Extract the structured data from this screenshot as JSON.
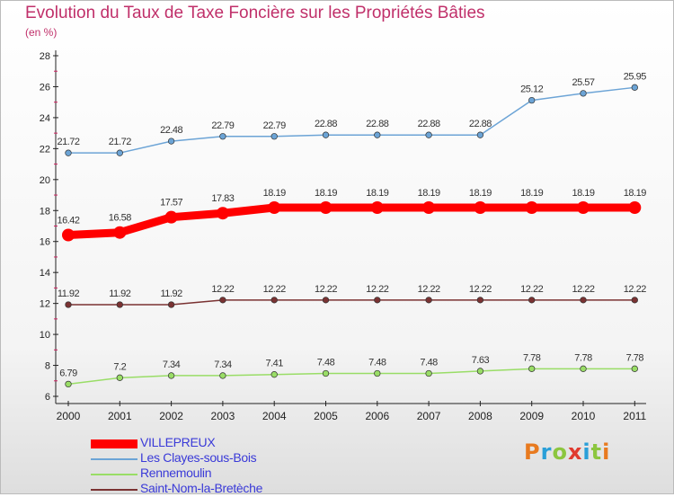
{
  "title": "Evolution du Taux de Taxe Foncière sur les Propriétés Bâties",
  "subtitle": "(en %)",
  "logo": {
    "text": "Proxiti",
    "colors": [
      "#e87a1f",
      "#2a9fd8",
      "#8cc63f",
      "#e03a2f",
      "#2a9fd8",
      "#8cc63f",
      "#e87a1f"
    ]
  },
  "chart_data": {
    "type": "line",
    "categories": [
      "2000",
      "2001",
      "2002",
      "2003",
      "2004",
      "2005",
      "2006",
      "2007",
      "2008",
      "2009",
      "2010",
      "2011"
    ],
    "ylim": [
      6,
      28
    ],
    "yticks": [
      "6",
      "8",
      "10",
      "12",
      "14",
      "16",
      "18",
      "20",
      "22",
      "24",
      "26",
      "28"
    ],
    "grid": false,
    "legend_position": "bottom-left",
    "series": [
      {
        "name": "VILLEPREUX",
        "color": "#ff0000",
        "values": [
          16.42,
          16.58,
          17.57,
          17.83,
          18.19,
          18.19,
          18.19,
          18.19,
          18.19,
          18.19,
          18.19,
          18.19
        ],
        "labels": [
          "16.42",
          "16.58",
          "17.57",
          "17.83",
          "18.19",
          "18.19",
          "18.19",
          "18.19",
          "18.19",
          "18.19",
          "18.19",
          "18.19"
        ]
      },
      {
        "name": "Les Clayes-sous-Bois",
        "color": "#6ca4d6",
        "values": [
          21.72,
          21.72,
          22.48,
          22.79,
          22.79,
          22.88,
          22.88,
          22.88,
          22.88,
          25.12,
          25.57,
          25.95
        ],
        "labels": [
          "21.72",
          "21.72",
          "22.48",
          "22.79",
          "22.79",
          "22.88",
          "22.88",
          "22.88",
          "22.88",
          "25.12",
          "25.57",
          "25.95"
        ]
      },
      {
        "name": "Rennemoulin",
        "color": "#99dd66",
        "values": [
          6.79,
          7.2,
          7.34,
          7.34,
          7.41,
          7.48,
          7.48,
          7.48,
          7.63,
          7.78,
          7.78,
          7.78
        ],
        "labels": [
          "6.79",
          "7.2",
          "7.34",
          "7.34",
          "7.41",
          "7.48",
          "7.48",
          "7.48",
          "7.63",
          "7.78",
          "7.78",
          "7.78"
        ]
      },
      {
        "name": "Saint-Nom-la-Bretèche",
        "color": "#7a3232",
        "values": [
          11.92,
          11.92,
          11.92,
          12.22,
          12.22,
          12.22,
          12.22,
          12.22,
          12.22,
          12.22,
          12.22,
          12.22
        ],
        "labels": [
          "11.92",
          "11.92",
          "11.92",
          "12.22",
          "12.22",
          "12.22",
          "12.22",
          "12.22",
          "12.22",
          "12.22",
          "12.22",
          "12.22"
        ]
      }
    ]
  }
}
